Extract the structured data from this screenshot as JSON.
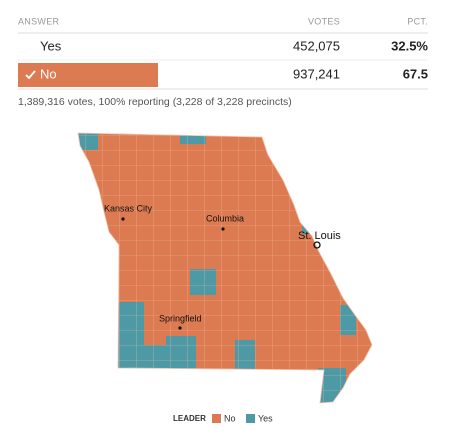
{
  "table": {
    "headers": [
      "ANSWER",
      "VOTES",
      "PCT."
    ],
    "rows": [
      [
        "Yes",
        "452,075",
        "32.5%"
      ],
      [
        "No",
        "937,241",
        "67.5"
      ]
    ]
  },
  "summary": "1,389,316 votes, 100% reporting (3,228 of 3,228 precincts)",
  "map": {
    "cities": [
      "Kansas City",
      "Columbia",
      "St. Louis",
      "Springfield"
    ]
  },
  "legend": {
    "title": "LEADER",
    "items": [
      "No",
      "Yes"
    ]
  }
}
